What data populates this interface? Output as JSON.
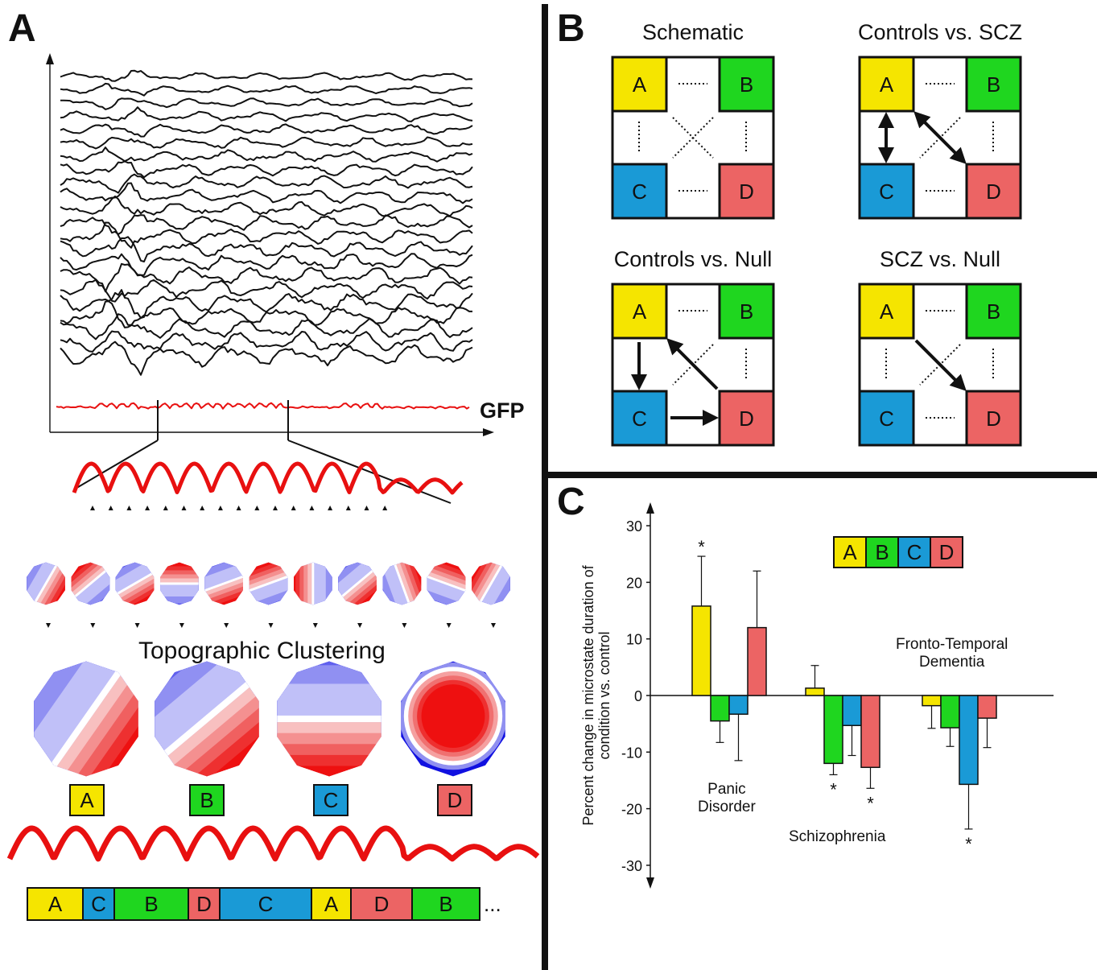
{
  "colors": {
    "A": "#f5e500",
    "B": "#1fd61f",
    "C": "#1a9ad6",
    "D": "#ec6464",
    "gfp": "#e81010",
    "blue": "#1010e0",
    "red": "#ee1010"
  },
  "panel_a": {
    "letter": "A",
    "gfp_label": "GFP",
    "clustering_label": "Topographic Clustering",
    "cluster_labels": [
      "A",
      "B",
      "C",
      "D"
    ],
    "sequence": [
      {
        "label": "A",
        "state": "A"
      },
      {
        "label": "C",
        "state": "C"
      },
      {
        "label": "B",
        "state": "B"
      },
      {
        "label": "D",
        "state": "D"
      },
      {
        "label": "C",
        "state": "C"
      },
      {
        "label": "A",
        "state": "A"
      },
      {
        "label": "D",
        "state": "D"
      },
      {
        "label": "B",
        "state": "B"
      }
    ],
    "ellipsis": "..."
  },
  "panel_b": {
    "letter": "B",
    "diagrams": [
      {
        "title": "Schematic",
        "labels": [
          "A",
          "B",
          "C",
          "D"
        ],
        "lines": {
          "ab": "dotted",
          "cd": "dotted",
          "ac": "dotted",
          "bd": "dotted",
          "ad": "dotted",
          "bc": "dotted"
        }
      },
      {
        "title": "Controls vs. SCZ",
        "labels": [
          "A",
          "B",
          "C",
          "D"
        ],
        "lines": {
          "ab": "dotted",
          "cd": "dotted",
          "ac": "double-arrow",
          "bd": "dotted",
          "ad": "double-arrow",
          "bc": "dotted"
        }
      },
      {
        "title": "Controls vs. Null",
        "labels": [
          "A",
          "B",
          "C",
          "D"
        ],
        "lines": {
          "ab": "dotted",
          "cd": "arrow-forward",
          "ac": "arrow-forward",
          "bd": "dotted",
          "ad": "arrow-backward",
          "bc": "dotted"
        }
      },
      {
        "title": "SCZ vs. Null",
        "labels": [
          "A",
          "B",
          "C",
          "D"
        ],
        "lines": {
          "ab": "dotted",
          "cd": "dotted",
          "ac": "dotted",
          "bd": "dotted",
          "ad": "arrow-forward",
          "bc": "dotted"
        }
      }
    ]
  },
  "panel_c": {
    "letter": "C",
    "legend": [
      "A",
      "B",
      "C",
      "D"
    ],
    "group_labels": [
      {
        "lines": [
          "Panic",
          "Disorder"
        ]
      },
      {
        "lines": [
          "Schizophrenia"
        ]
      },
      {
        "lines": [
          "Fronto-Temporal",
          "Dementia"
        ]
      }
    ]
  },
  "chart_data": {
    "type": "bar",
    "categories": [
      "Panic Disorder",
      "Schizophrenia",
      "Fronto-Temporal Dementia"
    ],
    "series": [
      {
        "name": "A",
        "values": [
          15.8,
          1.3,
          -1.8
        ],
        "errors": [
          8.8,
          4.0,
          4.0
        ],
        "significant": [
          true,
          false,
          false
        ]
      },
      {
        "name": "B",
        "values": [
          -4.5,
          -12.0,
          -5.7
        ],
        "errors": [
          3.8,
          2.0,
          3.3
        ],
        "significant": [
          false,
          true,
          false
        ]
      },
      {
        "name": "C",
        "values": [
          -3.3,
          -5.3,
          -15.7
        ],
        "errors": [
          8.2,
          5.3,
          7.9
        ],
        "significant": [
          false,
          false,
          true
        ]
      },
      {
        "name": "D",
        "values": [
          12.0,
          -12.7,
          -4.0
        ],
        "errors": [
          10.0,
          3.7,
          5.2
        ],
        "significant": [
          false,
          true,
          false
        ]
      }
    ],
    "ylabel": "Percent change in microstate duration of condition vs. control",
    "ylim": [
      -33,
      33
    ],
    "yticks": [
      30,
      20,
      10,
      0,
      -10,
      -20,
      -30
    ],
    "significance_marker": "*"
  }
}
